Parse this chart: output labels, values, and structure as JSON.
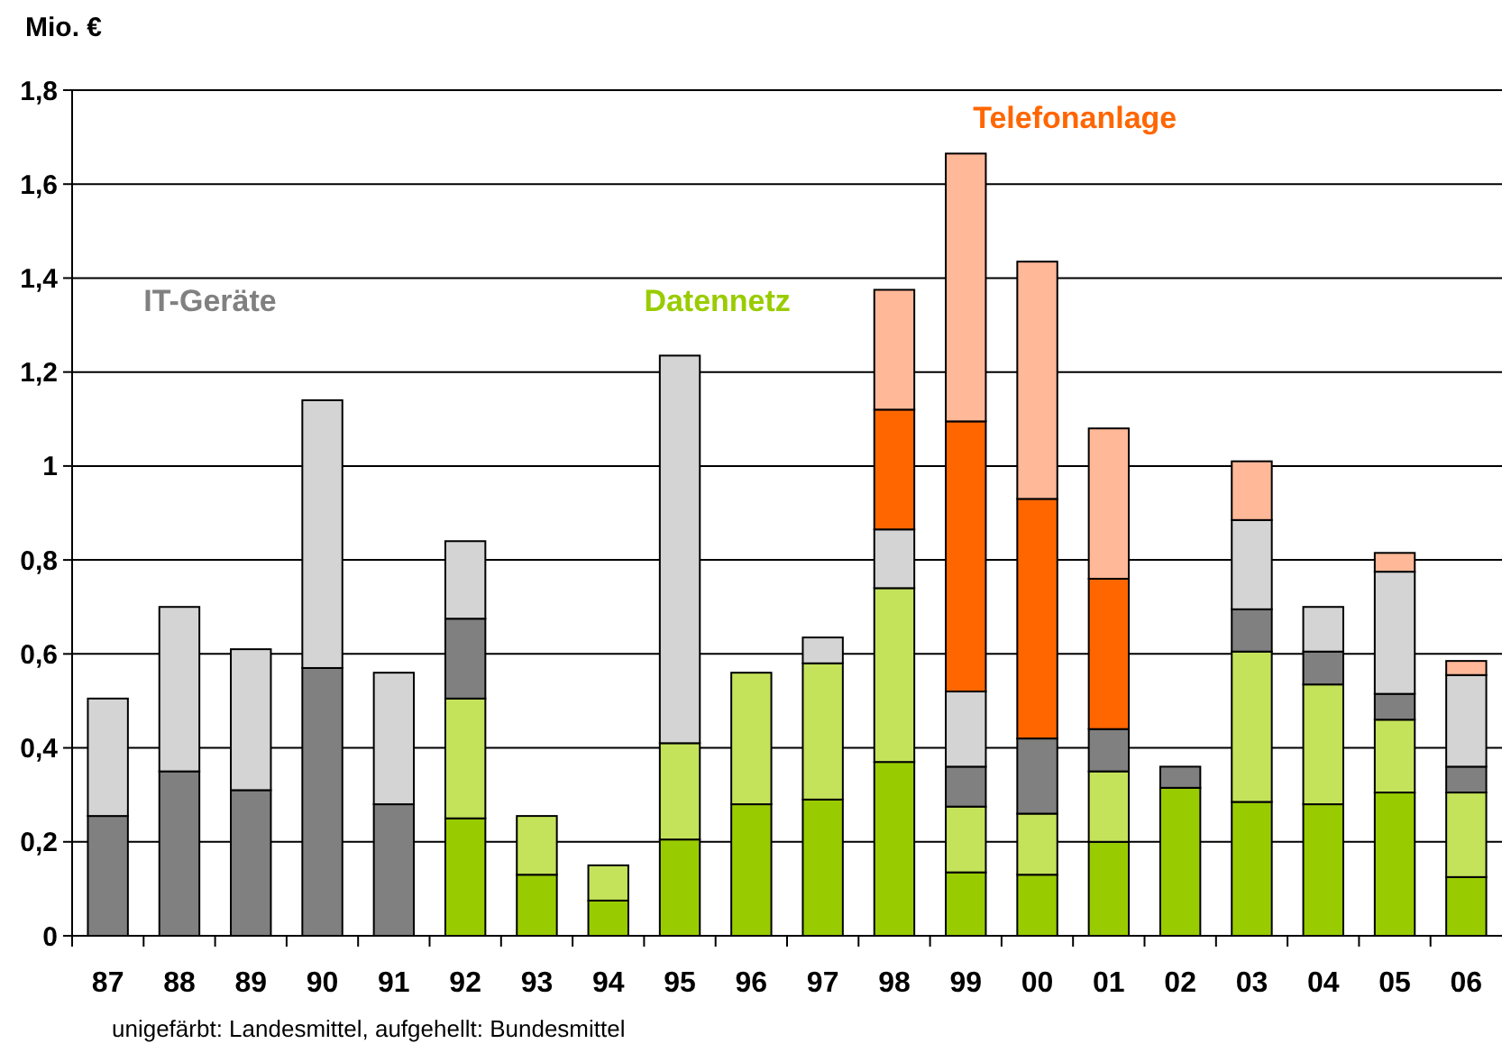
{
  "chart_data": {
    "type": "bar",
    "stacked": true,
    "ylabel": "Mio. €",
    "categories": [
      "87",
      "88",
      "89",
      "90",
      "91",
      "92",
      "93",
      "94",
      "95",
      "96",
      "97",
      "98",
      "99",
      "00",
      "01",
      "02",
      "03",
      "04",
      "05",
      "06"
    ],
    "series": [
      {
        "name": "Datennetz",
        "color": "#99cc00",
        "values": [
          0,
          0,
          0,
          0,
          0,
          0.25,
          0.13,
          0.075,
          0.205,
          0.28,
          0.29,
          0.37,
          0.135,
          0.13,
          0.2,
          0.315,
          0.285,
          0.28,
          0.305,
          0.125
        ]
      },
      {
        "color": "#c4e35a",
        "values": [
          0,
          0,
          0,
          0,
          0,
          0.255,
          0.125,
          0.075,
          0.205,
          0.28,
          0.29,
          0.37,
          0.14,
          0.13,
          0.15,
          0,
          0.32,
          0.255,
          0.155,
          0.18
        ]
      },
      {
        "name": "IT-Geräte",
        "color": "#808080",
        "values": [
          0.255,
          0.35,
          0.31,
          0.57,
          0.28,
          0.17,
          0,
          0,
          0,
          0,
          0,
          0,
          0.085,
          0.16,
          0.09,
          0.045,
          0.09,
          0.07,
          0.055,
          0.055
        ]
      },
      {
        "color": "#d4d4d4",
        "values": [
          0.25,
          0.35,
          0.3,
          0.57,
          0.28,
          0.165,
          0,
          0,
          0.825,
          0,
          0.055,
          0.125,
          0.16,
          0,
          0,
          0,
          0.19,
          0.095,
          0.26,
          0.195
        ]
      },
      {
        "name": "Telefonanlage",
        "color": "#ff6600",
        "values": [
          0,
          0,
          0,
          0,
          0,
          0,
          0,
          0,
          0,
          0,
          0,
          0.255,
          0.575,
          0.51,
          0.32,
          0,
          0,
          0,
          0,
          0
        ]
      },
      {
        "color": "#ffb898",
        "values": [
          0,
          0,
          0,
          0,
          0,
          0,
          0,
          0,
          0,
          0,
          0,
          0.255,
          0.57,
          0.505,
          0.32,
          0,
          0.125,
          0,
          0.04,
          0.03
        ]
      }
    ],
    "ylim": [
      0,
      1.8
    ],
    "yticks": [
      0,
      {
        "value": 0.2,
        "label": "0,2"
      },
      {
        "value": 0.4,
        "label": "0,4"
      },
      {
        "value": 0.6,
        "label": "0,6"
      },
      {
        "value": 0.8,
        "label": "0,8"
      },
      1,
      {
        "value": 1.2,
        "label": "1,2"
      },
      {
        "value": 1.4,
        "label": "1,4"
      },
      {
        "value": 1.6,
        "label": "1,6"
      },
      {
        "value": 1.8,
        "label": "1,8"
      }
    ],
    "grid": "y",
    "annotations": [
      "unigefärbt: Landesmittel, aufgehellt: Bundesmittel"
    ]
  }
}
